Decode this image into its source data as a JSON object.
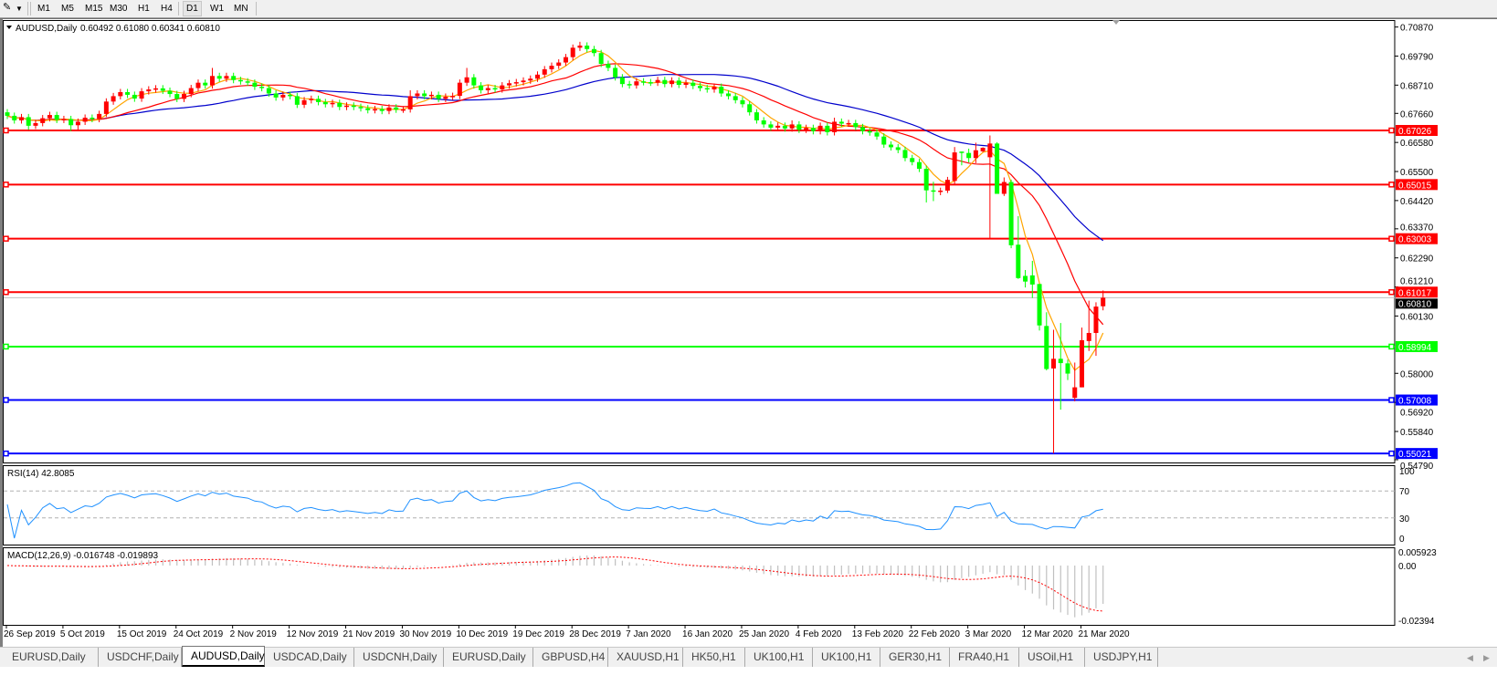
{
  "toolbar": {
    "tool_icon": "pen-crosshair-icon",
    "timeframes": [
      "M1",
      "M5",
      "M15",
      "M30",
      "H1",
      "H4",
      "D1",
      "W1",
      "MN"
    ],
    "active_timeframe": "D1"
  },
  "chart": {
    "symbol_label": "AUDUSD,Daily",
    "ohlc_label": "0.60492 0.61080 0.60341 0.60810",
    "current_price": "0.60810",
    "colors": {
      "bull": "#ff0000",
      "bear": "#00ff00",
      "ma_fast": "#ffa500",
      "ma_mid": "#ff0000",
      "ma_slow": "#0000cc",
      "rsi": "#1e90ff",
      "macd_hist": "#c0c0c0",
      "macd_signal": "#ff0000"
    },
    "price_axis": [
      "0.70870",
      "0.69790",
      "0.68710",
      "0.67660",
      "0.66580",
      "0.65500",
      "0.64420",
      "0.63370",
      "0.62290",
      "0.61210",
      "0.60130",
      "0.58000",
      "0.56920",
      "0.55840",
      "0.54790"
    ],
    "horizontal_lines": [
      {
        "price": "0.67026",
        "color": "#ff0000"
      },
      {
        "price": "0.65015",
        "color": "#ff0000"
      },
      {
        "price": "0.63003",
        "color": "#ff0000"
      },
      {
        "price": "0.61017",
        "color": "#ff0000"
      },
      {
        "price": "0.58994",
        "color": "#00ff00"
      },
      {
        "price": "0.57008",
        "color": "#0000ff"
      },
      {
        "price": "0.55021",
        "color": "#0000ff"
      }
    ],
    "date_axis": [
      "26 Sep 2019",
      "5 Oct 2019",
      "15 Oct 2019",
      "24 Oct 2019",
      "2 Nov 2019",
      "12 Nov 2019",
      "21 Nov 2019",
      "30 Nov 2019",
      "10 Dec 2019",
      "19 Dec 2019",
      "28 Dec 2019",
      "7 Jan 2020",
      "16 Jan 2020",
      "25 Jan 2020",
      "4 Feb 2020",
      "13 Feb 2020",
      "22 Feb 2020",
      "3 Mar 2020",
      "12 Mar 2020",
      "21 Mar 2020"
    ]
  },
  "rsi": {
    "label": "RSI(14) 42.8085",
    "axis": [
      "100",
      "70",
      "30",
      "0"
    ],
    "levels": [
      70,
      30
    ]
  },
  "macd": {
    "label": "MACD(12,26,9) -0.016748 -0.019893",
    "axis": [
      "0.005923",
      "0.00",
      "-0.02394"
    ]
  },
  "chart_data": {
    "type": "candlestick",
    "symbol": "AUDUSD",
    "timeframe": "Daily",
    "ylim": [
      0.5479,
      0.7087
    ],
    "candle_format": [
      "open",
      "high",
      "low",
      "close"
    ],
    "candles": [
      [
        0.677,
        0.6782,
        0.6745,
        0.6757
      ],
      [
        0.6757,
        0.6769,
        0.6728,
        0.674
      ],
      [
        0.674,
        0.6764,
        0.6728,
        0.6752
      ],
      [
        0.6752,
        0.6764,
        0.6705,
        0.672
      ],
      [
        0.672,
        0.6742,
        0.6708,
        0.673
      ],
      [
        0.673,
        0.676,
        0.6718,
        0.6748
      ],
      [
        0.6748,
        0.6772,
        0.6736,
        0.676
      ],
      [
        0.676,
        0.6772,
        0.673,
        0.6742
      ],
      [
        0.6742,
        0.6757,
        0.673,
        0.6745
      ],
      [
        0.6745,
        0.6757,
        0.67,
        0.6722
      ],
      [
        0.6722,
        0.6747,
        0.67,
        0.6735
      ],
      [
        0.6735,
        0.6762,
        0.6723,
        0.675
      ],
      [
        0.675,
        0.6762,
        0.6733,
        0.6745
      ],
      [
        0.6745,
        0.6776,
        0.6733,
        0.6764
      ],
      [
        0.6764,
        0.6822,
        0.6752,
        0.681
      ],
      [
        0.681,
        0.6842,
        0.6798,
        0.683
      ],
      [
        0.683,
        0.6857,
        0.6818,
        0.6845
      ],
      [
        0.6845,
        0.6857,
        0.6823,
        0.6835
      ],
      [
        0.6835,
        0.6847,
        0.6809,
        0.6821
      ],
      [
        0.6821,
        0.686,
        0.6809,
        0.6848
      ],
      [
        0.6848,
        0.6867,
        0.6836,
        0.6855
      ],
      [
        0.6855,
        0.6871,
        0.6843,
        0.6859
      ],
      [
        0.6859,
        0.6871,
        0.6838,
        0.685
      ],
      [
        0.685,
        0.6862,
        0.6826,
        0.6838
      ],
      [
        0.6838,
        0.685,
        0.6808,
        0.682
      ],
      [
        0.682,
        0.685,
        0.6808,
        0.6838
      ],
      [
        0.6838,
        0.6872,
        0.6826,
        0.686
      ],
      [
        0.686,
        0.6892,
        0.6848,
        0.688
      ],
      [
        0.688,
        0.6892,
        0.6858,
        0.687
      ],
      [
        0.687,
        0.6935,
        0.6858,
        0.6905
      ],
      [
        0.6905,
        0.6917,
        0.6883,
        0.6895
      ],
      [
        0.6895,
        0.6917,
        0.6883,
        0.6905
      ],
      [
        0.6905,
        0.6917,
        0.6878,
        0.689
      ],
      [
        0.689,
        0.6902,
        0.6873,
        0.6885
      ],
      [
        0.6885,
        0.6897,
        0.6868,
        0.688
      ],
      [
        0.688,
        0.6892,
        0.6853,
        0.6865
      ],
      [
        0.6865,
        0.6877,
        0.6848,
        0.686
      ],
      [
        0.686,
        0.6872,
        0.6828,
        0.684
      ],
      [
        0.684,
        0.6852,
        0.6813,
        0.6825
      ],
      [
        0.6825,
        0.6847,
        0.6813,
        0.6835
      ],
      [
        0.6835,
        0.6847,
        0.6818,
        0.683
      ],
      [
        0.683,
        0.6842,
        0.6786,
        0.6798
      ],
      [
        0.6798,
        0.6827,
        0.6786,
        0.6815
      ],
      [
        0.6815,
        0.6832,
        0.6803,
        0.682
      ],
      [
        0.682,
        0.6832,
        0.6796,
        0.6808
      ],
      [
        0.6808,
        0.682,
        0.6788,
        0.68
      ],
      [
        0.68,
        0.6817,
        0.6788,
        0.6805
      ],
      [
        0.6805,
        0.6817,
        0.6778,
        0.679
      ],
      [
        0.679,
        0.6807,
        0.6778,
        0.6795
      ],
      [
        0.6795,
        0.6807,
        0.6778,
        0.679
      ],
      [
        0.679,
        0.6802,
        0.6773,
        0.6785
      ],
      [
        0.6785,
        0.6797,
        0.6766,
        0.6778
      ],
      [
        0.6778,
        0.6794,
        0.6766,
        0.6782
      ],
      [
        0.6782,
        0.6794,
        0.6763,
        0.6775
      ],
      [
        0.6775,
        0.68,
        0.6763,
        0.6788
      ],
      [
        0.6788,
        0.68,
        0.6768,
        0.678
      ],
      [
        0.678,
        0.6793,
        0.6768,
        0.6781
      ],
      [
        0.6781,
        0.6852,
        0.6769,
        0.683
      ],
      [
        0.683,
        0.6852,
        0.6818,
        0.684
      ],
      [
        0.684,
        0.6852,
        0.6818,
        0.683
      ],
      [
        0.683,
        0.6847,
        0.6818,
        0.6835
      ],
      [
        0.6835,
        0.6847,
        0.6808,
        0.682
      ],
      [
        0.682,
        0.684,
        0.6808,
        0.6828
      ],
      [
        0.6828,
        0.6843,
        0.6816,
        0.6831
      ],
      [
        0.6831,
        0.6892,
        0.6819,
        0.688
      ],
      [
        0.688,
        0.6935,
        0.6868,
        0.69
      ],
      [
        0.69,
        0.6912,
        0.6858,
        0.687
      ],
      [
        0.687,
        0.6882,
        0.684,
        0.6852
      ],
      [
        0.6852,
        0.6872,
        0.684,
        0.686
      ],
      [
        0.686,
        0.6872,
        0.6843,
        0.6855
      ],
      [
        0.6855,
        0.6882,
        0.6843,
        0.687
      ],
      [
        0.687,
        0.689,
        0.6858,
        0.6878
      ],
      [
        0.6878,
        0.6894,
        0.6866,
        0.6882
      ],
      [
        0.6882,
        0.69,
        0.687,
        0.6888
      ],
      [
        0.6888,
        0.6907,
        0.6876,
        0.6895
      ],
      [
        0.6895,
        0.6922,
        0.6883,
        0.691
      ],
      [
        0.691,
        0.6942,
        0.6898,
        0.693
      ],
      [
        0.693,
        0.6955,
        0.6918,
        0.6943
      ],
      [
        0.6943,
        0.6967,
        0.6931,
        0.6955
      ],
      [
        0.6955,
        0.6987,
        0.6943,
        0.6975
      ],
      [
        0.6975,
        0.7022,
        0.6963,
        0.701
      ],
      [
        0.701,
        0.7032,
        0.6998,
        0.7018
      ],
      [
        0.7018,
        0.703,
        0.6993,
        0.7005
      ],
      [
        0.7005,
        0.7017,
        0.6978,
        0.699
      ],
      [
        0.699,
        0.7002,
        0.6938,
        0.695
      ],
      [
        0.695,
        0.6962,
        0.6923,
        0.6935
      ],
      [
        0.6935,
        0.6947,
        0.6888,
        0.69
      ],
      [
        0.69,
        0.6912,
        0.6863,
        0.6875
      ],
      [
        0.6875,
        0.6887,
        0.6858,
        0.687
      ],
      [
        0.687,
        0.6897,
        0.6858,
        0.6885
      ],
      [
        0.6885,
        0.6897,
        0.687,
        0.6882
      ],
      [
        0.6882,
        0.6894,
        0.6868,
        0.688
      ],
      [
        0.688,
        0.6902,
        0.6868,
        0.689
      ],
      [
        0.689,
        0.6902,
        0.6863,
        0.6875
      ],
      [
        0.6875,
        0.69,
        0.6863,
        0.6888
      ],
      [
        0.6888,
        0.69,
        0.686,
        0.6872
      ],
      [
        0.6872,
        0.6892,
        0.686,
        0.688
      ],
      [
        0.688,
        0.6892,
        0.6856,
        0.6868
      ],
      [
        0.6868,
        0.688,
        0.6848,
        0.686
      ],
      [
        0.686,
        0.6872,
        0.6843,
        0.6855
      ],
      [
        0.6855,
        0.6877,
        0.6843,
        0.6865
      ],
      [
        0.6865,
        0.6877,
        0.6828,
        0.684
      ],
      [
        0.684,
        0.6852,
        0.6818,
        0.683
      ],
      [
        0.683,
        0.6842,
        0.6803,
        0.6815
      ],
      [
        0.6815,
        0.6827,
        0.6788,
        0.68
      ],
      [
        0.68,
        0.6812,
        0.6758,
        0.677
      ],
      [
        0.677,
        0.6782,
        0.6728,
        0.674
      ],
      [
        0.674,
        0.6752,
        0.6713,
        0.6725
      ],
      [
        0.6725,
        0.6737,
        0.6701,
        0.6713
      ],
      [
        0.6713,
        0.6732,
        0.6701,
        0.672
      ],
      [
        0.672,
        0.6732,
        0.6698,
        0.671
      ],
      [
        0.671,
        0.674,
        0.6698,
        0.6725
      ],
      [
        0.6725,
        0.6737,
        0.6693,
        0.6705
      ],
      [
        0.6705,
        0.6724,
        0.6693,
        0.6712
      ],
      [
        0.6712,
        0.6724,
        0.6688,
        0.67
      ],
      [
        0.67,
        0.6732,
        0.6688,
        0.672
      ],
      [
        0.672,
        0.6732,
        0.6684,
        0.6696
      ],
      [
        0.6696,
        0.675,
        0.6684,
        0.6735
      ],
      [
        0.6735,
        0.6747,
        0.6716,
        0.6728
      ],
      [
        0.6728,
        0.6742,
        0.6716,
        0.673
      ],
      [
        0.673,
        0.6742,
        0.6703,
        0.6715
      ],
      [
        0.6715,
        0.6727,
        0.6688,
        0.67
      ],
      [
        0.67,
        0.6712,
        0.6683,
        0.6695
      ],
      [
        0.6695,
        0.6707,
        0.6668,
        0.668
      ],
      [
        0.668,
        0.6692,
        0.6638,
        0.665
      ],
      [
        0.665,
        0.6662,
        0.6628,
        0.664
      ],
      [
        0.664,
        0.6652,
        0.6618,
        0.663
      ],
      [
        0.663,
        0.6642,
        0.6588,
        0.66
      ],
      [
        0.66,
        0.6612,
        0.6573,
        0.6585
      ],
      [
        0.6585,
        0.6597,
        0.6548,
        0.656
      ],
      [
        0.656,
        0.6572,
        0.6435,
        0.648
      ],
      [
        0.648,
        0.6512,
        0.644,
        0.6476
      ],
      [
        0.6476,
        0.649,
        0.6462,
        0.6479
      ],
      [
        0.6479,
        0.653,
        0.647,
        0.6519
      ],
      [
        0.6515,
        0.6641,
        0.6504,
        0.6621
      ],
      [
        0.6624,
        0.6624,
        0.6573,
        0.6619
      ],
      [
        0.6619,
        0.6635,
        0.6584,
        0.66
      ],
      [
        0.66,
        0.6657,
        0.6581,
        0.6629
      ],
      [
        0.6625,
        0.664,
        0.6622,
        0.6638
      ],
      [
        0.6603,
        0.6684,
        0.6303,
        0.6654
      ],
      [
        0.6654,
        0.6659,
        0.6467,
        0.6467
      ],
      [
        0.6467,
        0.6528,
        0.6459,
        0.6511
      ],
      [
        0.6511,
        0.652,
        0.6265,
        0.6276
      ],
      [
        0.6278,
        0.6384,
        0.6151,
        0.6154
      ],
      [
        0.6162,
        0.6184,
        0.6119,
        0.6141
      ],
      [
        0.6164,
        0.6218,
        0.608,
        0.613
      ],
      [
        0.6132,
        0.6132,
        0.5959,
        0.5978
      ],
      [
        0.5976,
        0.6027,
        0.5811,
        0.5816
      ],
      [
        0.5818,
        0.5962,
        0.5502,
        0.5854
      ],
      [
        0.5854,
        0.5987,
        0.5665,
        0.5838
      ],
      [
        0.5837,
        0.5851,
        0.5775,
        0.5799
      ],
      [
        0.5709,
        0.584,
        0.5696,
        0.5748
      ],
      [
        0.5748,
        0.597,
        0.5748,
        0.5923
      ],
      [
        0.592,
        0.607,
        0.5883,
        0.595
      ],
      [
        0.595,
        0.6064,
        0.5865,
        0.6048
      ],
      [
        0.60492,
        0.6108,
        0.60341,
        0.6081
      ]
    ],
    "grid": false
  },
  "tabs": [
    {
      "label": "EURUSD,Daily"
    },
    {
      "label": "USDCHF,Daily"
    },
    {
      "label": "AUDUSD,Daily",
      "active": true
    },
    {
      "label": "USDCAD,Daily"
    },
    {
      "label": "USDCNH,Daily"
    },
    {
      "label": "EURUSD,Daily"
    },
    {
      "label": "GBPUSD,H4"
    },
    {
      "label": "XAUUSD,H1"
    },
    {
      "label": "HK50,H1"
    },
    {
      "label": "UK100,H1"
    },
    {
      "label": "UK100,H1"
    },
    {
      "label": "GER30,H1"
    },
    {
      "label": "FRA40,H1"
    },
    {
      "label": "USOil,H1"
    },
    {
      "label": "USDJPY,H1"
    }
  ]
}
